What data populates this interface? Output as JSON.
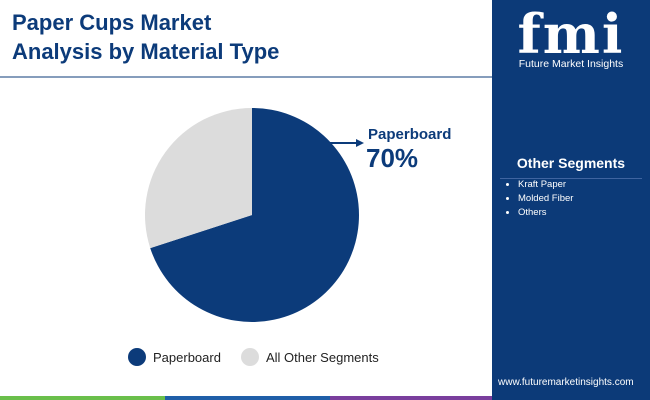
{
  "chart_data": {
    "type": "pie",
    "title": [
      "Paper Cups Market",
      "Analysis by Material Type"
    ],
    "categories": [
      "Paperboard",
      "All Other Segments"
    ],
    "values": [
      70,
      30
    ],
    "value_labels": [
      "70%",
      null
    ],
    "colors": [
      "#0c3b7a",
      "#dcdcdc"
    ],
    "legend": "bottom"
  },
  "sidebar": {
    "logo": "fmi",
    "brand": "Future Market Insights",
    "heading": "Other Segments",
    "items": [
      "Kraft Paper",
      "Molded Fiber",
      "Others"
    ],
    "url": "www.futuremarketinsights.com"
  }
}
